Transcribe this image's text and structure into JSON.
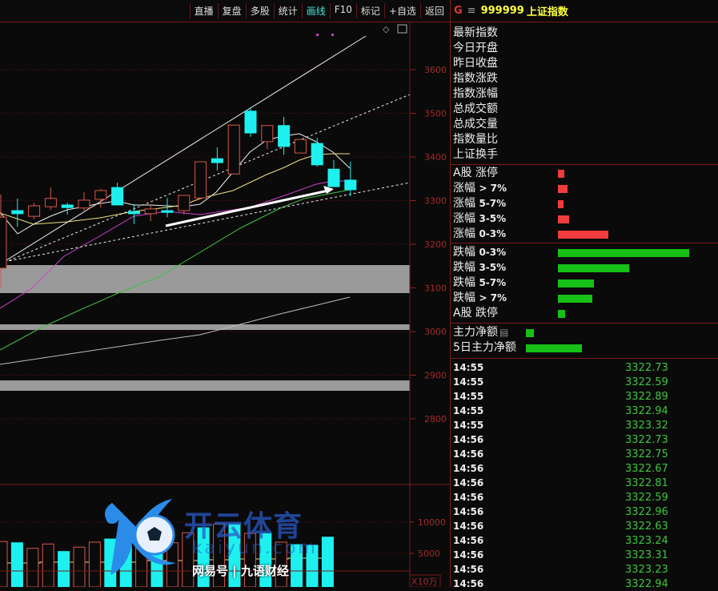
{
  "toolbar": {
    "items": [
      "直播",
      "复盘",
      "多股",
      "统计",
      "画线",
      "F10",
      "标记",
      "+自选",
      "返回"
    ],
    "active": "画线"
  },
  "header": {
    "g": "G",
    "menu_icon": "≡",
    "code": "999999",
    "name": "上证指数"
  },
  "stats_labels": [
    "最新指数",
    "今日开盘",
    "昨日收盘",
    "指数涨跌",
    "指数涨幅",
    "总成交额",
    "总成交量",
    "指数量比",
    "上证换手"
  ],
  "up": [
    {
      "label": "A股 涨停",
      "pct": "",
      "level": 4
    },
    {
      "label": "涨幅",
      "pct": "> 7%",
      "level": 6
    },
    {
      "label": "涨幅",
      "pct": "5-7%",
      "level": 3.5
    },
    {
      "label": "涨幅",
      "pct": "3-5%",
      "level": 7
    },
    {
      "label": "涨幅",
      "pct": "0-3%",
      "level": 31.5
    }
  ],
  "down": [
    {
      "label": "跌幅",
      "pct": "0-3%",
      "level": 82
    },
    {
      "label": "跌幅",
      "pct": "3-5%",
      "level": 44.5
    },
    {
      "label": "跌幅",
      "pct": "5-7%",
      "level": 22.5
    },
    {
      "label": "跌幅",
      "pct": "> 7%",
      "level": 21.5
    },
    {
      "label": "A股 跌停",
      "pct": "",
      "level": 4.5
    }
  ],
  "net": [
    {
      "label": "主力净额",
      "level": 4
    },
    {
      "label": "5日主力净额",
      "level": 29
    }
  ],
  "colors": {
    "up": "#f03c3c",
    "down": "#16c016",
    "candle_up": "#d8584c",
    "candle_down": "#1ef0f0",
    "grid": "#6a1010"
  },
  "ticks": [
    [
      "14:55",
      "3322.73"
    ],
    [
      "14:55",
      "3322.59"
    ],
    [
      "14:55",
      "3322.89"
    ],
    [
      "14:55",
      "3322.94"
    ],
    [
      "14:55",
      "3323.32"
    ],
    [
      "14:56",
      "3322.73"
    ],
    [
      "14:56",
      "3322.75"
    ],
    [
      "14:56",
      "3322.67"
    ],
    [
      "14:56",
      "3322.81"
    ],
    [
      "14:56",
      "3322.59"
    ],
    [
      "14:56",
      "3322.96"
    ],
    [
      "14:56",
      "3322.63"
    ],
    [
      "14:56",
      "3323.24"
    ],
    [
      "14:56",
      "3323.31"
    ],
    [
      "14:56",
      "3323.23"
    ],
    [
      "14:56",
      "3322.94"
    ]
  ],
  "price_axis": [
    "3600",
    "3500",
    "3400",
    "3300",
    "3200",
    "3100",
    "3000",
    "2900",
    "2800"
  ],
  "volume_axis": [
    "10000",
    "5000"
  ],
  "volume_unit": "X10万",
  "chart_data": {
    "type": "candlestick",
    "ohlc": [
      [
        3145,
        3314,
        3100,
        3262
      ],
      [
        3277,
        3305,
        3240,
        3270
      ],
      [
        3264,
        3295,
        3257,
        3288
      ],
      [
        3286,
        3330,
        3279,
        3305
      ],
      [
        3290,
        3295,
        3268,
        3284
      ],
      [
        3283,
        3319,
        3277,
        3301
      ],
      [
        3303,
        3327,
        3284,
        3323
      ],
      [
        3330,
        3341,
        3290,
        3290
      ],
      [
        3275,
        3292,
        3246,
        3270
      ],
      [
        3270,
        3292,
        3253,
        3281
      ],
      [
        3277,
        3306,
        3262,
        3273
      ],
      [
        3277,
        3312,
        3268,
        3312
      ],
      [
        3306,
        3389,
        3303,
        3389
      ],
      [
        3396,
        3422,
        3369,
        3387
      ],
      [
        3361,
        3473,
        3361,
        3473
      ],
      [
        3505,
        3514,
        3446,
        3455
      ],
      [
        3435,
        3472,
        3418,
        3472
      ],
      [
        3472,
        3492,
        3405,
        3424
      ],
      [
        3409,
        3440,
        3409,
        3440
      ],
      [
        3431,
        3444,
        3378,
        3382
      ],
      [
        3372,
        3393,
        3332,
        3332
      ],
      [
        3347,
        3389,
        3310,
        3325
      ]
    ],
    "volume": [
      6900,
      6700,
      5800,
      6500,
      5300,
      6000,
      6800,
      7300,
      6800,
      7900,
      8600,
      6700,
      8300,
      9100,
      9700,
      9700,
      8200,
      8200,
      6800,
      6400,
      6300,
      7600
    ],
    "ylim": [
      2750,
      3700
    ]
  },
  "watermark": {
    "brand": "开云体育",
    "url": "kaiyun.com",
    "source": "网易号 | 九语财经"
  }
}
